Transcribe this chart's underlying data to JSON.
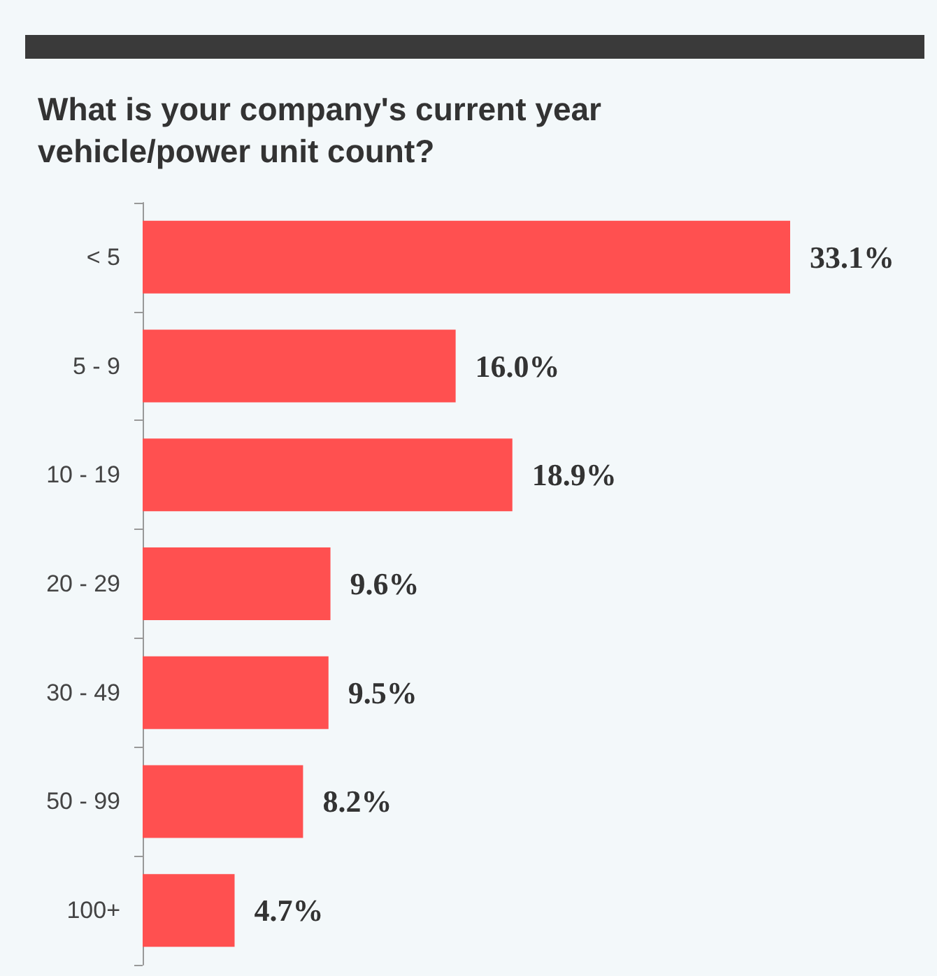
{
  "chart_data": {
    "type": "bar",
    "orientation": "horizontal",
    "title": "What is your company's current year\nvehicle/power unit count?",
    "categories": [
      "< 5",
      "5 - 9",
      "10 - 19",
      "20 - 29",
      "30 - 49",
      "50 - 99",
      "100+"
    ],
    "values": [
      33.1,
      16.0,
      18.9,
      9.6,
      9.5,
      8.2,
      4.7
    ],
    "value_labels": [
      "33.1%",
      "16.0%",
      "18.9%",
      "9.6%",
      "9.5%",
      "8.2%",
      "4.7%"
    ],
    "color": "#ff5050"
  }
}
